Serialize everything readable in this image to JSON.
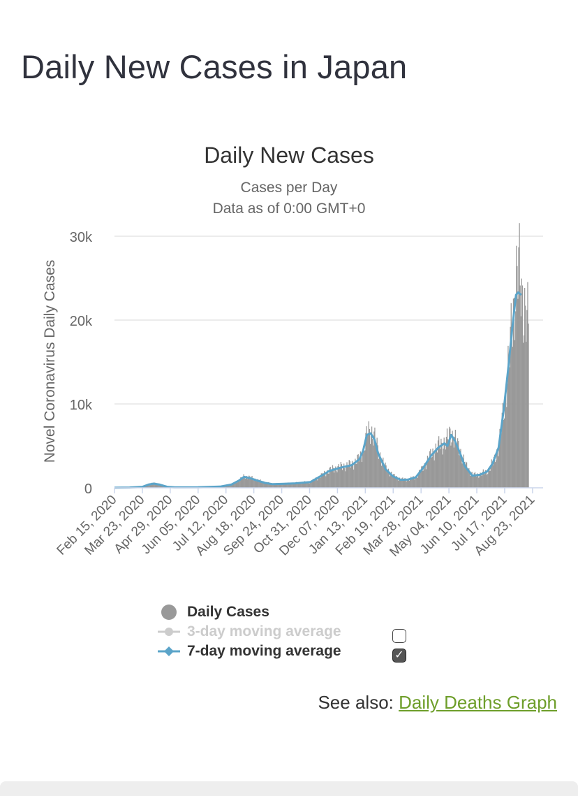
{
  "page": {
    "title": "Daily New Cases in Japan"
  },
  "chart_data": {
    "type": "bar",
    "title": "Daily New Cases",
    "subtitle_line1": "Cases per Day",
    "subtitle_line2": "Data as of 0:00 GMT+0",
    "ylabel": "Novel Coronavirus Daily Cases",
    "ylim": [
      0,
      30000
    ],
    "y_ticks": [
      {
        "value": 0,
        "label": "0"
      },
      {
        "value": 10000,
        "label": "10k"
      },
      {
        "value": 20000,
        "label": "20k"
      },
      {
        "value": 30000,
        "label": "30k"
      }
    ],
    "x_tick_labels": [
      "Feb 15, 2020",
      "Mar 23, 2020",
      "Apr 29, 2020",
      "Jun 05, 2020",
      "Jul 12, 2020",
      "Aug 18, 2020",
      "Sep 24, 2020",
      "Oct 31, 2020",
      "Dec 07, 2020",
      "Jan 13, 2021",
      "Feb 19, 2021",
      "Mar 28, 2021",
      "May 04, 2021",
      "Jun 10, 2021",
      "Jul 17, 2021",
      "Aug 23, 2021"
    ],
    "x_start": "2020-02-15",
    "x_end": "2021-09-06",
    "series": [
      {
        "name": "Daily Cases",
        "color": "#999999",
        "kind": "bars",
        "anchors": [
          [
            0,
            10
          ],
          [
            20,
            40
          ],
          [
            37,
            150
          ],
          [
            45,
            400
          ],
          [
            52,
            550
          ],
          [
            60,
            400
          ],
          [
            70,
            120
          ],
          [
            80,
            50
          ],
          [
            111,
            60
          ],
          [
            140,
            150
          ],
          [
            155,
            400
          ],
          [
            165,
            900
          ],
          [
            172,
            1400
          ],
          [
            180,
            1200
          ],
          [
            190,
            900
          ],
          [
            200,
            600
          ],
          [
            210,
            450
          ],
          [
            225,
            500
          ],
          [
            240,
            550
          ],
          [
            260,
            700
          ],
          [
            275,
            1500
          ],
          [
            285,
            2100
          ],
          [
            300,
            2500
          ],
          [
            315,
            2800
          ],
          [
            325,
            3500
          ],
          [
            330,
            4500
          ],
          [
            335,
            6500
          ],
          [
            340,
            6800
          ],
          [
            345,
            6000
          ],
          [
            350,
            4200
          ],
          [
            360,
            2300
          ],
          [
            370,
            1400
          ],
          [
            380,
            1000
          ],
          [
            390,
            1000
          ],
          [
            400,
            1300
          ],
          [
            410,
            2500
          ],
          [
            420,
            4000
          ],
          [
            430,
            5000
          ],
          [
            440,
            5500
          ],
          [
            445,
            6500
          ],
          [
            450,
            6000
          ],
          [
            458,
            4500
          ],
          [
            465,
            2800
          ],
          [
            475,
            1500
          ],
          [
            485,
            1600
          ],
          [
            495,
            2000
          ],
          [
            502,
            3000
          ],
          [
            510,
            5000
          ],
          [
            517,
            10000
          ],
          [
            523,
            15000
          ],
          [
            528,
            20000
          ],
          [
            533,
            25000
          ],
          [
            536,
            26000
          ],
          [
            540,
            23000
          ],
          [
            545,
            21000
          ],
          [
            549,
            19000
          ]
        ]
      },
      {
        "name": "3-day moving average",
        "color": "#cccccc",
        "kind": "line",
        "visible": false
      },
      {
        "name": "7-day moving average",
        "color": "#5ba4c9",
        "kind": "line",
        "anchors": [
          [
            0,
            10
          ],
          [
            20,
            30
          ],
          [
            37,
            120
          ],
          [
            45,
            380
          ],
          [
            52,
            500
          ],
          [
            60,
            380
          ],
          [
            70,
            120
          ],
          [
            80,
            50
          ],
          [
            111,
            60
          ],
          [
            140,
            140
          ],
          [
            155,
            380
          ],
          [
            165,
            850
          ],
          [
            172,
            1300
          ],
          [
            180,
            1150
          ],
          [
            190,
            850
          ],
          [
            200,
            580
          ],
          [
            210,
            430
          ],
          [
            225,
            480
          ],
          [
            240,
            530
          ],
          [
            260,
            680
          ],
          [
            275,
            1450
          ],
          [
            285,
            2000
          ],
          [
            300,
            2400
          ],
          [
            315,
            2700
          ],
          [
            325,
            3400
          ],
          [
            330,
            4400
          ],
          [
            335,
            6300
          ],
          [
            340,
            6500
          ],
          [
            345,
            5800
          ],
          [
            350,
            4100
          ],
          [
            360,
            2200
          ],
          [
            370,
            1350
          ],
          [
            380,
            950
          ],
          [
            390,
            980
          ],
          [
            400,
            1250
          ],
          [
            410,
            2400
          ],
          [
            420,
            3800
          ],
          [
            430,
            4800
          ],
          [
            438,
            5300
          ],
          [
            442,
            5000
          ],
          [
            447,
            6300
          ],
          [
            452,
            5600
          ],
          [
            458,
            4300
          ],
          [
            465,
            2600
          ],
          [
            475,
            1450
          ],
          [
            485,
            1550
          ],
          [
            495,
            1950
          ],
          [
            502,
            2900
          ],
          [
            510,
            4800
          ],
          [
            517,
            9500
          ],
          [
            523,
            14500
          ],
          [
            528,
            19000
          ],
          [
            533,
            23000
          ],
          [
            536,
            23300
          ],
          [
            540,
            23000
          ]
        ]
      }
    ],
    "legend": [
      {
        "label": "Daily Cases",
        "active": true
      },
      {
        "label": "3-day moving average",
        "active": false,
        "checked": false
      },
      {
        "label": "7-day moving average",
        "active": true,
        "checked": true
      }
    ]
  },
  "see_also": {
    "prefix": "See also:",
    "link_text": "Daily Deaths Graph"
  }
}
